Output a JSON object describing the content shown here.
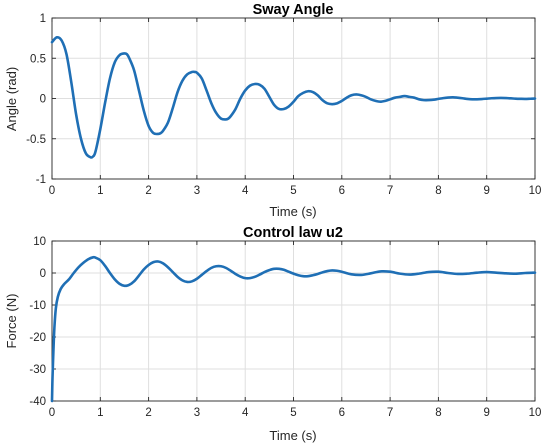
{
  "chart_data": [
    {
      "type": "line",
      "title": "Sway Angle",
      "xlabel": "Time (s)",
      "ylabel": "Angle (rad)",
      "xlim": [
        0,
        10
      ],
      "ylim": [
        -1,
        1
      ],
      "xticks": [
        "0",
        "1",
        "2",
        "3",
        "4",
        "5",
        "6",
        "7",
        "8",
        "9",
        "10"
      ],
      "yticks": [
        "-1",
        "-0.5",
        "0",
        "0.5",
        "1"
      ],
      "grid": true,
      "color": "#1f6fb5",
      "series": [
        {
          "x": [
            0,
            0.1,
            0.2,
            0.3,
            0.4,
            0.5,
            0.6,
            0.7,
            0.8,
            0.85,
            0.9,
            1.0,
            1.1,
            1.2,
            1.3,
            1.4,
            1.5,
            1.55,
            1.6,
            1.7,
            1.8,
            1.9,
            2.0,
            2.1,
            2.2,
            2.25,
            2.3,
            2.4,
            2.5,
            2.6,
            2.7,
            2.8,
            2.9,
            2.95,
            3.0,
            3.1,
            3.2,
            3.3,
            3.4,
            3.5,
            3.6,
            3.65,
            3.7,
            3.8,
            3.9,
            4.0,
            4.1,
            4.2,
            4.3,
            4.4,
            4.5,
            4.6,
            4.7,
            4.8,
            4.9,
            5.0,
            5.1,
            5.2,
            5.3,
            5.4,
            5.5,
            5.6,
            5.7,
            5.8,
            5.9,
            6.0,
            6.1,
            6.2,
            6.3,
            6.4,
            6.5,
            6.6,
            6.7,
            6.8,
            6.9,
            7.0,
            7.1,
            7.2,
            7.3,
            7.4,
            7.5,
            7.6,
            7.7,
            7.8,
            7.9,
            8.0,
            8.1,
            8.2,
            8.3,
            8.4,
            8.5,
            8.6,
            8.7,
            8.8,
            8.9,
            9.0,
            9.1,
            9.2,
            9.3,
            9.4,
            9.5,
            9.6,
            9.7,
            9.8,
            9.9,
            10.0
          ],
          "y": [
            0.7,
            0.76,
            0.72,
            0.55,
            0.2,
            -0.2,
            -0.5,
            -0.68,
            -0.73,
            -0.72,
            -0.66,
            -0.38,
            -0.05,
            0.25,
            0.45,
            0.54,
            0.56,
            0.55,
            0.5,
            0.35,
            0.1,
            -0.15,
            -0.34,
            -0.43,
            -0.44,
            -0.43,
            -0.4,
            -0.3,
            -0.12,
            0.08,
            0.22,
            0.3,
            0.33,
            0.33,
            0.32,
            0.25,
            0.1,
            -0.06,
            -0.18,
            -0.25,
            -0.26,
            -0.25,
            -0.22,
            -0.13,
            0.0,
            0.1,
            0.16,
            0.18,
            0.17,
            0.12,
            0.02,
            -0.08,
            -0.13,
            -0.13,
            -0.1,
            -0.04,
            0.03,
            0.07,
            0.09,
            0.08,
            0.04,
            -0.02,
            -0.06,
            -0.07,
            -0.06,
            -0.03,
            0.01,
            0.04,
            0.05,
            0.04,
            0.02,
            -0.01,
            -0.03,
            -0.04,
            -0.03,
            -0.01,
            0.01,
            0.02,
            0.03,
            0.02,
            0.01,
            -0.01,
            -0.02,
            -0.02,
            -0.015,
            -0.005,
            0.005,
            0.012,
            0.015,
            0.01,
            0.003,
            -0.005,
            -0.01,
            -0.01,
            -0.007,
            -0.002,
            0.003,
            0.006,
            0.007,
            0.005,
            0.002,
            -0.002,
            -0.004,
            -0.005,
            -0.003,
            -0.001
          ]
        }
      ]
    },
    {
      "type": "line",
      "title": "Control law u2",
      "xlabel": "Time (s)",
      "ylabel": "Force (N)",
      "xlim": [
        0,
        10
      ],
      "ylim": [
        -40,
        10
      ],
      "xticks": [
        "0",
        "1",
        "2",
        "3",
        "4",
        "5",
        "6",
        "7",
        "8",
        "9",
        "10"
      ],
      "yticks": [
        "-40",
        "-30",
        "-20",
        "-10",
        "0",
        "10"
      ],
      "grid": true,
      "color": "#1f6fb5",
      "series": [
        {
          "x": [
            0,
            0.01,
            0.03,
            0.05,
            0.08,
            0.12,
            0.18,
            0.25,
            0.35,
            0.45,
            0.55,
            0.65,
            0.75,
            0.85,
            0.9,
            1.0,
            1.1,
            1.2,
            1.3,
            1.4,
            1.5,
            1.6,
            1.7,
            1.8,
            1.9,
            2.0,
            2.1,
            2.2,
            2.3,
            2.4,
            2.5,
            2.6,
            2.7,
            2.8,
            2.9,
            3.0,
            3.1,
            3.2,
            3.3,
            3.4,
            3.5,
            3.6,
            3.7,
            3.8,
            3.9,
            4.0,
            4.1,
            4.2,
            4.3,
            4.4,
            4.5,
            4.6,
            4.7,
            4.8,
            4.9,
            5.0,
            5.1,
            5.2,
            5.3,
            5.4,
            5.5,
            5.6,
            5.7,
            5.8,
            5.9,
            6.0,
            6.2,
            6.4,
            6.6,
            6.8,
            7.0,
            7.2,
            7.4,
            7.6,
            7.8,
            8.0,
            8.2,
            8.4,
            8.6,
            8.8,
            9.0,
            9.2,
            9.4,
            9.6,
            9.8,
            10.0
          ],
          "y": [
            -40,
            -33,
            -24,
            -17,
            -11,
            -7.5,
            -5,
            -3.5,
            -2,
            0,
            1.8,
            3.2,
            4.3,
            4.9,
            4.8,
            4.0,
            2.2,
            0.0,
            -2.0,
            -3.4,
            -4.0,
            -3.7,
            -2.6,
            -0.8,
            1.1,
            2.5,
            3.4,
            3.6,
            3.0,
            1.8,
            0.3,
            -1.2,
            -2.3,
            -2.8,
            -2.6,
            -1.8,
            -0.6,
            0.6,
            1.6,
            2.1,
            2.1,
            1.6,
            0.7,
            -0.3,
            -1.1,
            -1.6,
            -1.6,
            -1.2,
            -0.5,
            0.3,
            0.9,
            1.3,
            1.3,
            1.0,
            0.4,
            -0.2,
            -0.7,
            -1.0,
            -1.0,
            -0.7,
            -0.3,
            0.2,
            0.6,
            0.8,
            0.7,
            0.4,
            -0.4,
            -0.6,
            -0.1,
            0.5,
            0.4,
            -0.2,
            -0.5,
            -0.2,
            0.3,
            0.4,
            0.0,
            -0.3,
            -0.2,
            0.1,
            0.3,
            0.1,
            -0.1,
            -0.2,
            0.0,
            0.1
          ]
        }
      ]
    }
  ]
}
